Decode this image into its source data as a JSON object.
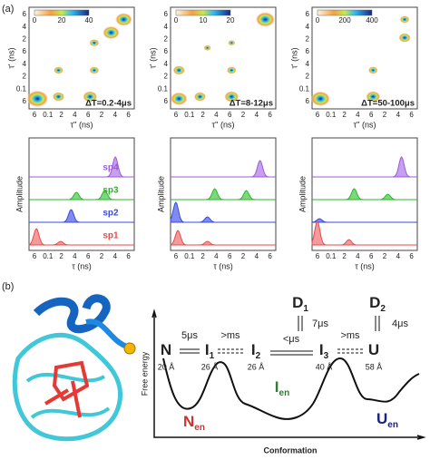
{
  "panel_a": {
    "label": "(a)",
    "map_y_label": "τ' (ns)",
    "map_x_label": "τ'' (ns)",
    "map_y_ticks": [
      "6",
      "4",
      "2",
      "6",
      "4",
      "2",
      "0.1",
      "6"
    ],
    "map_x_ticks": [
      "6",
      "0.1",
      "2",
      "4",
      "6",
      "2",
      "4",
      "6"
    ],
    "maps": [
      {
        "colorbar_ticks": [
          "0",
          "20",
          "40"
        ],
        "annotation": "ΔT=0.2-4μs"
      },
      {
        "colorbar_ticks": [
          "0",
          "10",
          "20"
        ],
        "annotation": "ΔT=8-12μs"
      },
      {
        "colorbar_ticks": [
          "0",
          "200",
          "400"
        ],
        "annotation": "ΔT=50-100μs"
      }
    ],
    "spectra_y_label": "Amplitude",
    "spectra_x_label": "τ (ns)",
    "spectra_x_ticks": [
      "6",
      "0.1",
      "2",
      "4",
      "6",
      "2",
      "4",
      "6"
    ],
    "species": [
      "sp4",
      "sp3",
      "sp2",
      "sp1"
    ]
  },
  "panel_b": {
    "label": "(b)",
    "y_label": "Free energy",
    "x_label": "Conformation",
    "states": [
      {
        "main": "N",
        "sub": "",
        "distance": "20 Å"
      },
      {
        "main": "I",
        "sub": "1",
        "distance": "26 Å"
      },
      {
        "main": "I",
        "sub": "2",
        "distance": "26 Å"
      },
      {
        "main": "I",
        "sub": "3",
        "distance": "40 Å"
      },
      {
        "main": "U",
        "sub": "",
        "distance": "58 Å"
      }
    ],
    "dark_states": [
      {
        "main": "D",
        "sub": "1",
        "rate": "7μs"
      },
      {
        "main": "D",
        "sub": "2",
        "rate": "4μs"
      }
    ],
    "rates": [
      "5μs",
      ">ms",
      "<μs",
      ">ms"
    ],
    "ensembles": [
      {
        "main": "N",
        "sub": "en"
      },
      {
        "main": "I",
        "sub": "en"
      },
      {
        "main": "U",
        "sub": "en"
      }
    ]
  }
}
